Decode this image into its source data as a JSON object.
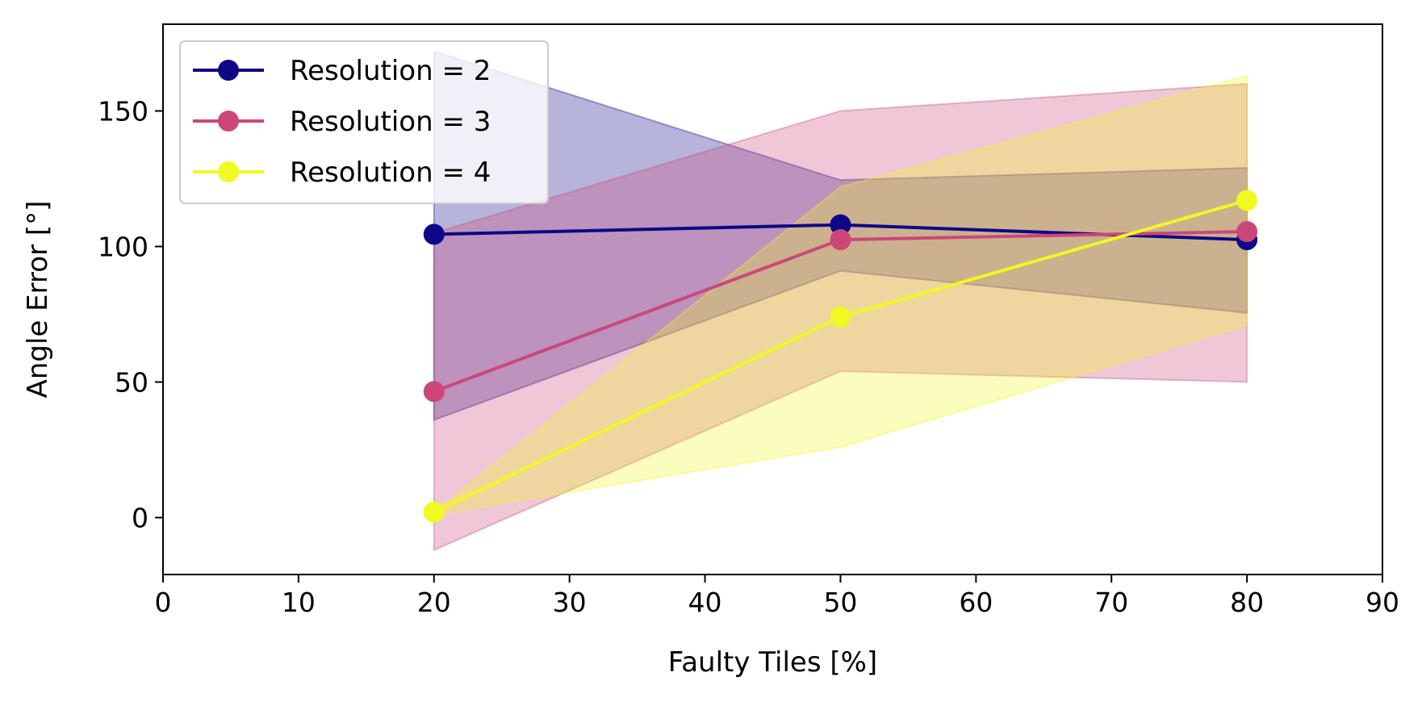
{
  "chart_data": {
    "type": "line",
    "title": "",
    "xlabel": "Faulty Tiles [%]",
    "ylabel": "Angle Error [°]",
    "xlim": [
      0,
      90
    ],
    "ylim": [
      -21,
      182
    ],
    "xticks": [
      0,
      10,
      20,
      30,
      40,
      50,
      60,
      70,
      80,
      90
    ],
    "yticks": [
      0,
      50,
      100,
      150
    ],
    "grid": false,
    "legend_position": "top-left",
    "x": [
      20,
      50,
      80
    ],
    "series": [
      {
        "name": "Resolution = 2",
        "color": "#0d0887",
        "values": [
          104.5,
          108,
          102.5
        ],
        "band_upper": [
          172,
          124.5,
          129
        ],
        "band_lower": [
          36,
          91,
          75.5
        ]
      },
      {
        "name": "Resolution = 3",
        "color": "#cc4778",
        "values": [
          46.5,
          102.5,
          105.5
        ],
        "band_upper": [
          105,
          150,
          160
        ],
        "band_lower": [
          -12,
          54,
          50
        ]
      },
      {
        "name": "Resolution = 4",
        "color": "#f0f921",
        "values": [
          2,
          74,
          117
        ],
        "band_upper": [
          2,
          122,
          163
        ],
        "band_lower": [
          1,
          26,
          71
        ]
      }
    ]
  }
}
